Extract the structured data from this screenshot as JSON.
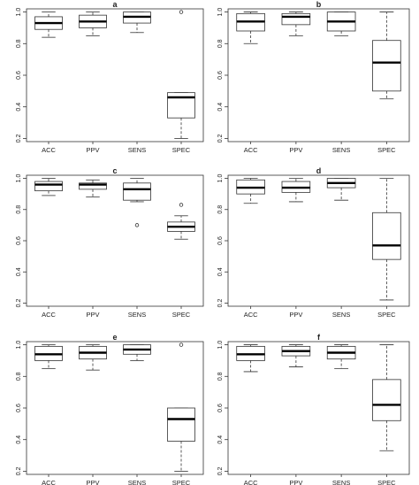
{
  "chart_data": [
    {
      "type": "box",
      "panel": "a",
      "categories": [
        "ACC",
        "PPV",
        "SENS",
        "SPEC"
      ],
      "y_ticks": [
        "0.2",
        "0.4",
        "0.6",
        "0.8",
        "1.0"
      ],
      "ylim": [
        0.18,
        1.02
      ],
      "boxes": [
        {
          "category": "ACC",
          "min": 0.84,
          "q1": 0.89,
          "median": 0.93,
          "q3": 0.97,
          "max": 1.0,
          "outliers": []
        },
        {
          "category": "PPV",
          "min": 0.85,
          "q1": 0.9,
          "median": 0.94,
          "q3": 0.98,
          "max": 1.0,
          "outliers": []
        },
        {
          "category": "SENS",
          "min": 0.87,
          "q1": 0.93,
          "median": 0.97,
          "q3": 1.0,
          "max": 1.0,
          "outliers": []
        },
        {
          "category": "SPEC",
          "min": 0.2,
          "q1": 0.33,
          "median": 0.46,
          "q3": 0.49,
          "max": 0.49,
          "outliers": [
            1.0
          ]
        }
      ]
    },
    {
      "type": "box",
      "panel": "b",
      "categories": [
        "ACC",
        "PPV",
        "SENS",
        "SPEC"
      ],
      "y_ticks": [
        "0.2",
        "0.4",
        "0.6",
        "0.8",
        "1.0"
      ],
      "ylim": [
        0.18,
        1.02
      ],
      "boxes": [
        {
          "category": "ACC",
          "min": 0.8,
          "q1": 0.88,
          "median": 0.94,
          "q3": 0.99,
          "max": 1.0,
          "outliers": []
        },
        {
          "category": "PPV",
          "min": 0.85,
          "q1": 0.92,
          "median": 0.97,
          "q3": 0.99,
          "max": 1.0,
          "outliers": []
        },
        {
          "category": "SENS",
          "min": 0.85,
          "q1": 0.88,
          "median": 0.94,
          "q3": 1.0,
          "max": 1.0,
          "outliers": []
        },
        {
          "category": "SPEC",
          "min": 0.45,
          "q1": 0.5,
          "median": 0.68,
          "q3": 0.82,
          "max": 1.0,
          "outliers": []
        }
      ]
    },
    {
      "type": "box",
      "panel": "c",
      "categories": [
        "ACC",
        "PPV",
        "SENS",
        "SPEC"
      ],
      "y_ticks": [
        "0.2",
        "0.4",
        "0.6",
        "0.8",
        "1.0"
      ],
      "ylim": [
        0.18,
        1.02
      ],
      "boxes": [
        {
          "category": "ACC",
          "min": 0.89,
          "q1": 0.92,
          "median": 0.96,
          "q3": 0.98,
          "max": 1.0,
          "outliers": []
        },
        {
          "category": "PPV",
          "min": 0.88,
          "q1": 0.93,
          "median": 0.96,
          "q3": 0.97,
          "max": 0.99,
          "outliers": []
        },
        {
          "category": "SENS",
          "min": 0.85,
          "q1": 0.86,
          "median": 0.93,
          "q3": 0.97,
          "max": 1.0,
          "outliers": [
            0.7
          ]
        },
        {
          "category": "SPEC",
          "min": 0.61,
          "q1": 0.66,
          "median": 0.69,
          "q3": 0.72,
          "max": 0.76,
          "outliers": [
            0.83
          ]
        }
      ]
    },
    {
      "type": "box",
      "panel": "d",
      "categories": [
        "ACC",
        "PPV",
        "SENS",
        "SPEC"
      ],
      "y_ticks": [
        "0.2",
        "0.4",
        "0.6",
        "0.8",
        "1.0"
      ],
      "ylim": [
        0.18,
        1.02
      ],
      "boxes": [
        {
          "category": "ACC",
          "min": 0.84,
          "q1": 0.9,
          "median": 0.94,
          "q3": 0.99,
          "max": 1.0,
          "outliers": []
        },
        {
          "category": "PPV",
          "min": 0.85,
          "q1": 0.91,
          "median": 0.94,
          "q3": 0.98,
          "max": 1.0,
          "outliers": []
        },
        {
          "category": "SENS",
          "min": 0.86,
          "q1": 0.94,
          "median": 0.97,
          "q3": 1.0,
          "max": 1.0,
          "outliers": []
        },
        {
          "category": "SPEC",
          "min": 0.22,
          "q1": 0.48,
          "median": 0.57,
          "q3": 0.78,
          "max": 1.0,
          "outliers": []
        }
      ]
    },
    {
      "type": "box",
      "panel": "e",
      "categories": [
        "ACC",
        "PPV",
        "SENS",
        "SPEC"
      ],
      "y_ticks": [
        "0.2",
        "0.4",
        "0.6",
        "0.8",
        "1.0"
      ],
      "ylim": [
        0.18,
        1.02
      ],
      "boxes": [
        {
          "category": "ACC",
          "min": 0.85,
          "q1": 0.9,
          "median": 0.94,
          "q3": 0.99,
          "max": 1.0,
          "outliers": []
        },
        {
          "category": "PPV",
          "min": 0.84,
          "q1": 0.91,
          "median": 0.95,
          "q3": 0.99,
          "max": 1.0,
          "outliers": []
        },
        {
          "category": "SENS",
          "min": 0.9,
          "q1": 0.94,
          "median": 0.97,
          "q3": 1.0,
          "max": 1.0,
          "outliers": []
        },
        {
          "category": "SPEC",
          "min": 0.2,
          "q1": 0.39,
          "median": 0.53,
          "q3": 0.6,
          "max": 0.6,
          "outliers": [
            1.0
          ]
        }
      ]
    },
    {
      "type": "box",
      "panel": "f",
      "categories": [
        "ACC",
        "PPV",
        "SENS",
        "SPEC"
      ],
      "y_ticks": [
        "0.2",
        "0.4",
        "0.6",
        "0.8",
        "1.0"
      ],
      "ylim": [
        0.18,
        1.02
      ],
      "boxes": [
        {
          "category": "ACC",
          "min": 0.83,
          "q1": 0.9,
          "median": 0.94,
          "q3": 0.99,
          "max": 1.0,
          "outliers": []
        },
        {
          "category": "PPV",
          "min": 0.86,
          "q1": 0.93,
          "median": 0.96,
          "q3": 0.99,
          "max": 1.0,
          "outliers": []
        },
        {
          "category": "SENS",
          "min": 0.85,
          "q1": 0.91,
          "median": 0.95,
          "q3": 0.99,
          "max": 1.0,
          "outliers": []
        },
        {
          "category": "SPEC",
          "min": 0.33,
          "q1": 0.52,
          "median": 0.62,
          "q3": 0.78,
          "max": 1.0,
          "outliers": []
        }
      ]
    }
  ]
}
